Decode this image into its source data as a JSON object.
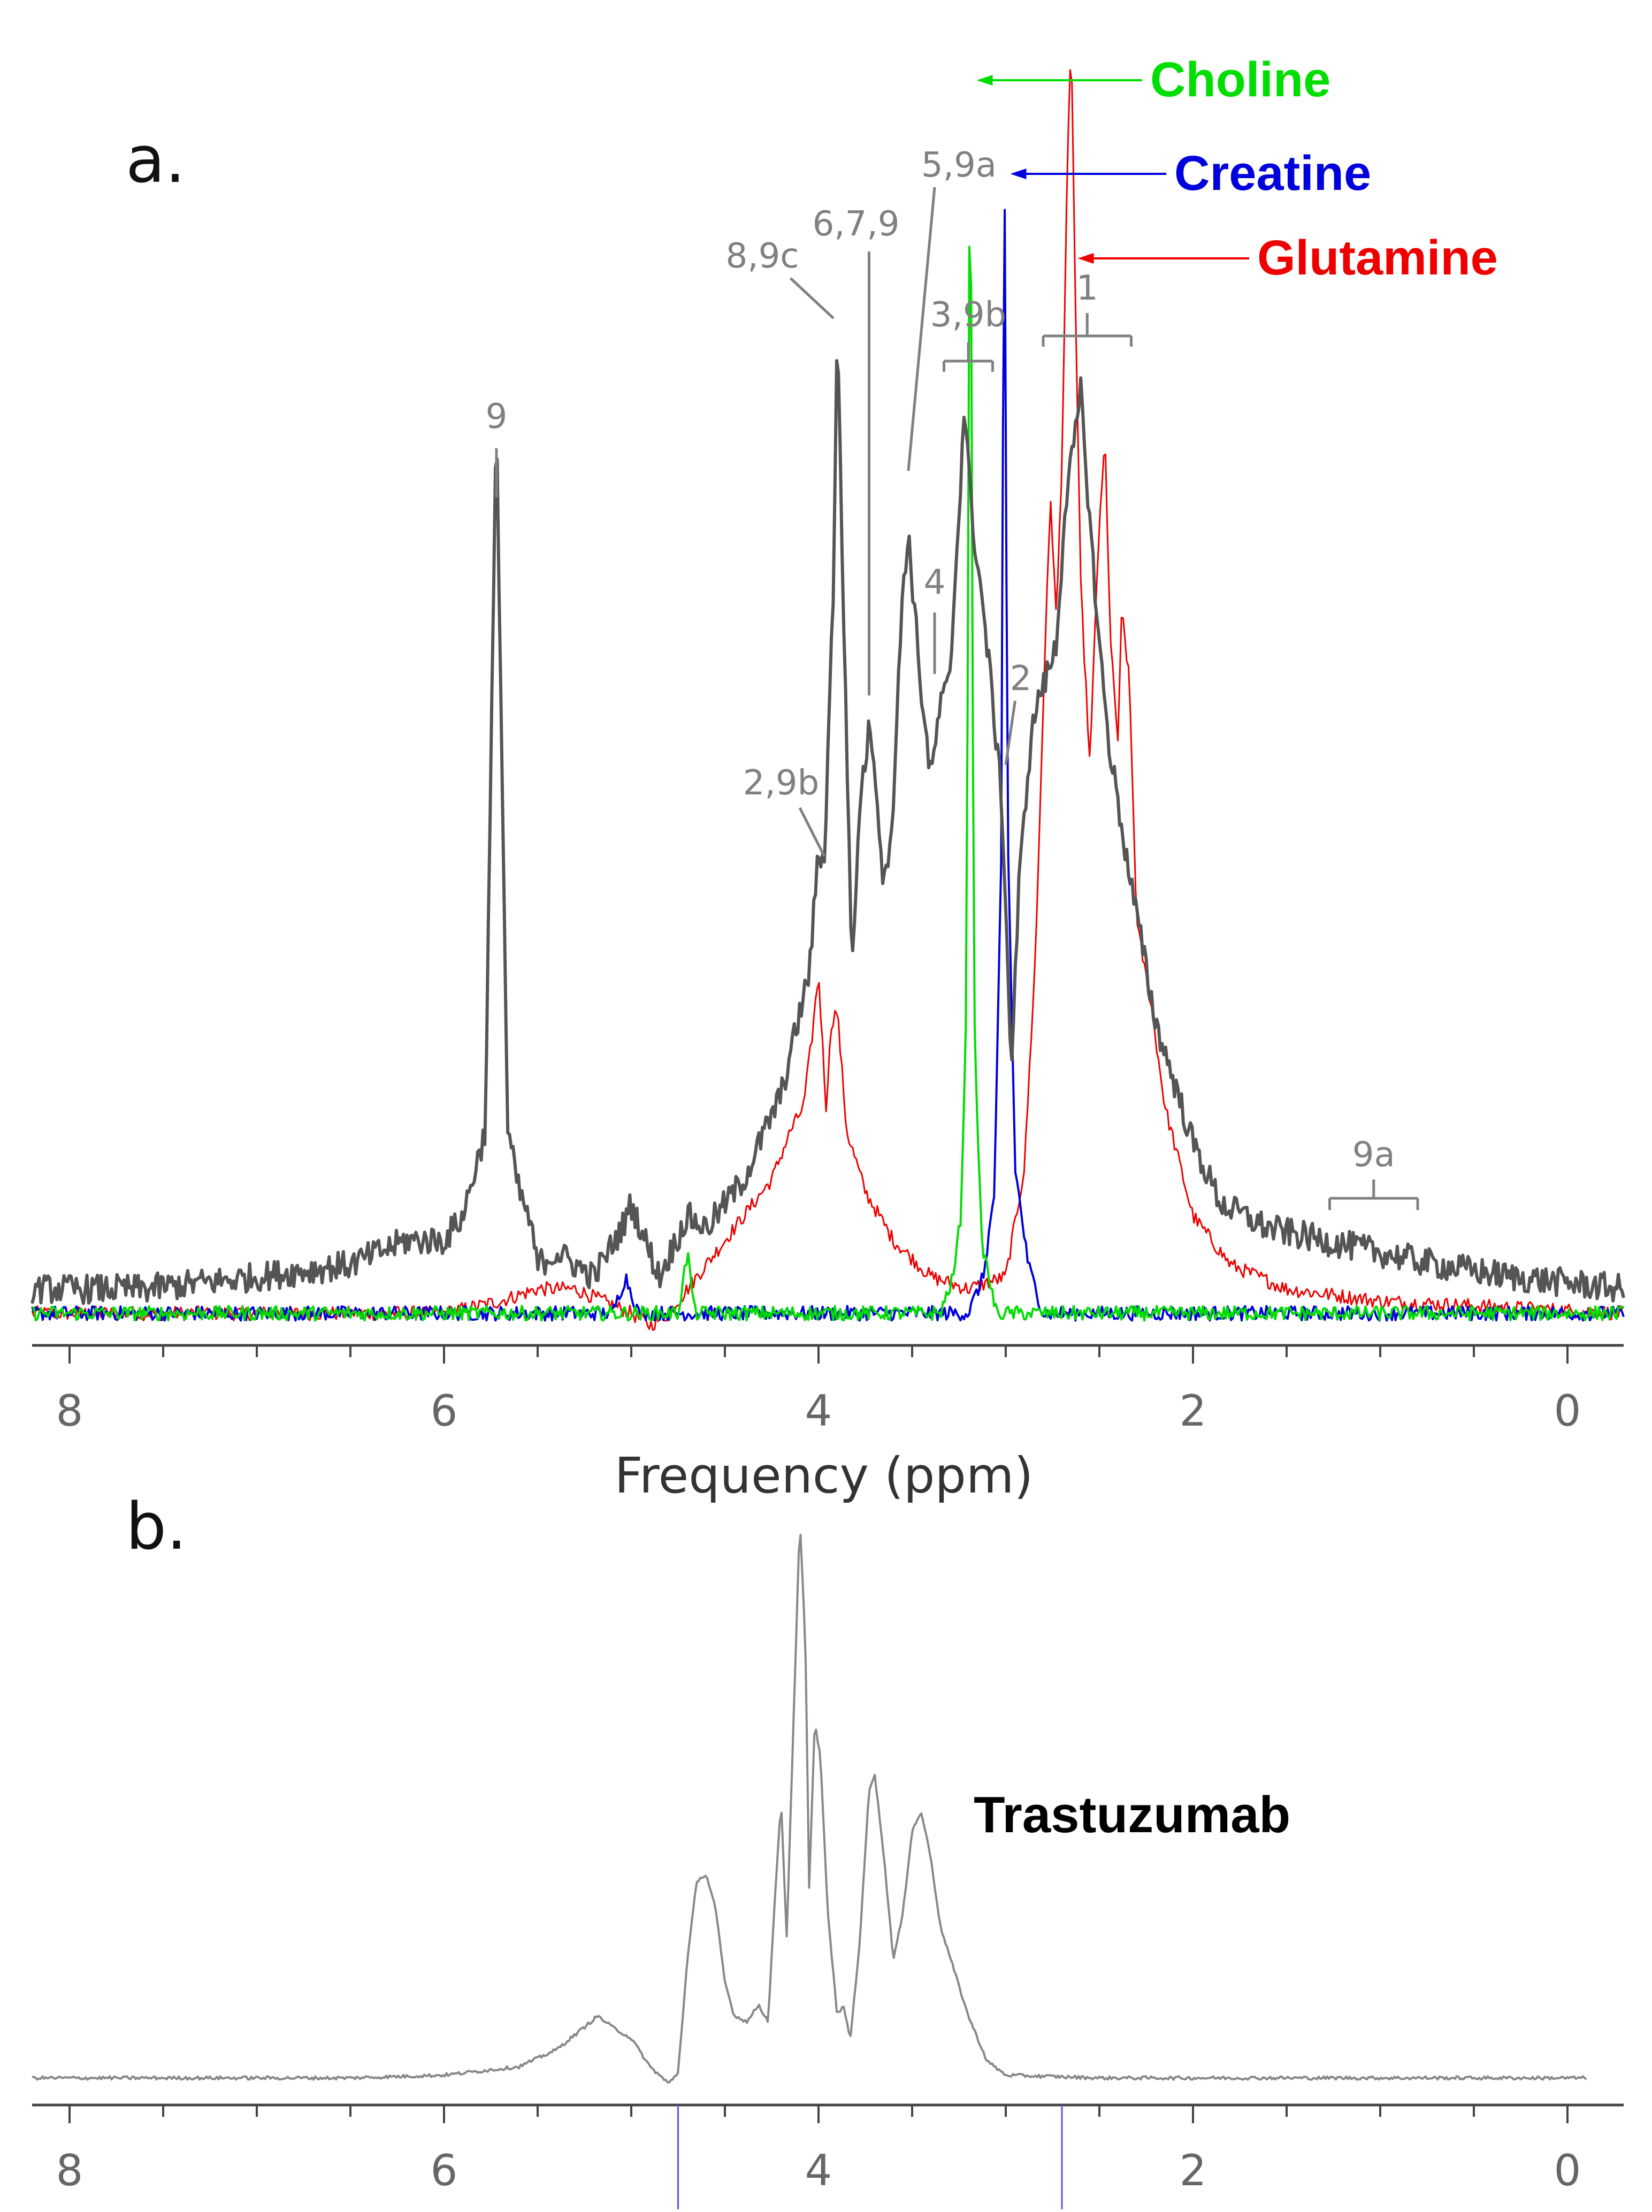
{
  "chart_data": [
    {
      "panel_label": "a.",
      "type": "line",
      "xlabel": "Frequency (ppm)",
      "xlim": [
        8.2,
        -0.3
      ],
      "x_reversed": true,
      "xticks": [
        "8",
        "6",
        "4",
        "2",
        "0"
      ],
      "xtick_values": [
        8,
        6,
        4,
        2,
        0
      ],
      "ylabel": "",
      "yticks_shown": false,
      "grid": false,
      "legend": "annotations-top-right",
      "colors": {
        "sample": "#555555",
        "choline": "#00dd00",
        "creatine": "#0000dd",
        "glutamine": "#ee0000",
        "annotation": "#808080"
      },
      "series": [
        {
          "name": "",
          "color": "#555555",
          "points": [
            [
              8.2,
              0.02
            ],
            [
              7.6,
              0.02
            ],
            [
              7.0,
              0.03
            ],
            [
              6.5,
              0.04
            ],
            [
              6.2,
              0.06
            ],
            [
              6.0,
              0.06
            ],
            [
              5.9,
              0.08
            ],
            [
              5.78,
              0.15
            ],
            [
              5.72,
              0.74
            ],
            [
              5.66,
              0.15
            ],
            [
              5.6,
              0.1
            ],
            [
              5.55,
              0.08
            ],
            [
              5.5,
              0.04
            ],
            [
              5.4,
              0.05
            ],
            [
              5.2,
              0.03
            ],
            [
              5.05,
              0.07
            ],
            [
              5.0,
              0.09
            ],
            [
              4.95,
              0.07
            ],
            [
              4.85,
              0.03
            ],
            [
              4.7,
              0.08
            ],
            [
              4.6,
              0.07
            ],
            [
              4.4,
              0.11
            ],
            [
              4.2,
              0.18
            ],
            [
              4.05,
              0.28
            ],
            [
              4.0,
              0.38
            ],
            [
              3.97,
              0.37
            ],
            [
              3.92,
              0.6
            ],
            [
              3.9,
              0.82
            ],
            [
              3.87,
              0.6
            ],
            [
              3.82,
              0.28
            ],
            [
              3.78,
              0.42
            ],
            [
              3.73,
              0.48
            ],
            [
              3.71,
              0.47
            ],
            [
              3.65,
              0.35
            ],
            [
              3.6,
              0.42
            ],
            [
              3.55,
              0.6
            ],
            [
              3.52,
              0.64
            ],
            [
              3.45,
              0.51
            ],
            [
              3.4,
              0.44
            ],
            [
              3.35,
              0.5
            ],
            [
              3.3,
              0.52
            ],
            [
              3.25,
              0.66
            ],
            [
              3.22,
              0.75
            ],
            [
              3.18,
              0.65
            ],
            [
              3.15,
              0.62
            ],
            [
              3.08,
              0.52
            ],
            [
              3.02,
              0.42
            ],
            [
              2.97,
              0.2
            ],
            [
              2.93,
              0.35
            ],
            [
              2.88,
              0.45
            ],
            [
              2.84,
              0.5
            ],
            [
              2.79,
              0.52
            ],
            [
              2.73,
              0.55
            ],
            [
              2.68,
              0.67
            ],
            [
              2.62,
              0.73
            ],
            [
              2.6,
              0.76
            ],
            [
              2.55,
              0.65
            ],
            [
              2.5,
              0.55
            ],
            [
              2.45,
              0.47
            ],
            [
              2.35,
              0.37
            ],
            [
              2.2,
              0.24
            ],
            [
              2.0,
              0.14
            ],
            [
              1.85,
              0.09
            ],
            [
              1.6,
              0.07
            ],
            [
              1.3,
              0.06
            ],
            [
              1.0,
              0.05
            ],
            [
              0.7,
              0.04
            ],
            [
              0.3,
              0.03
            ],
            [
              -0.3,
              0.02
            ]
          ]
        },
        {
          "name": "Choline",
          "color": "#00dd00",
          "points": [
            [
              8.2,
              0.0
            ],
            [
              5.0,
              0.0
            ],
            [
              4.75,
              0.0
            ],
            [
              4.7,
              0.05
            ],
            [
              4.66,
              0.0
            ],
            [
              3.6,
              0.0
            ],
            [
              3.35,
              0.0
            ],
            [
              3.28,
              0.03
            ],
            [
              3.24,
              0.08
            ],
            [
              3.21,
              0.25
            ],
            [
              3.19,
              1.05
            ],
            [
              3.17,
              0.25
            ],
            [
              3.13,
              0.06
            ],
            [
              3.05,
              0.0
            ],
            [
              2.9,
              0.0
            ],
            [
              -0.3,
              0.0
            ]
          ]
        },
        {
          "name": "Creatine",
          "color": "#0000dd",
          "points": [
            [
              8.2,
              0.0
            ],
            [
              5.1,
              0.0
            ],
            [
              5.03,
              0.03
            ],
            [
              4.96,
              0.0
            ],
            [
              3.5,
              0.0
            ],
            [
              3.2,
              0.0
            ],
            [
              3.12,
              0.03
            ],
            [
              3.06,
              0.1
            ],
            [
              3.02,
              0.4
            ],
            [
              3.01,
              1.05
            ],
            [
              2.99,
              0.4
            ],
            [
              2.95,
              0.12
            ],
            [
              2.88,
              0.04
            ],
            [
              2.8,
              0.0
            ],
            [
              -0.3,
              0.0
            ]
          ]
        },
        {
          "name": "Glutamine",
          "color": "#ee0000",
          "points": [
            [
              8.2,
              0.0
            ],
            [
              6.0,
              0.0
            ],
            [
              5.7,
              0.01
            ],
            [
              5.5,
              0.02
            ],
            [
              5.3,
              0.02
            ],
            [
              5.0,
              0.0
            ],
            [
              4.9,
              -0.01
            ],
            [
              4.8,
              0.0
            ],
            [
              4.6,
              0.04
            ],
            [
              4.4,
              0.08
            ],
            [
              4.25,
              0.11
            ],
            [
              4.15,
              0.15
            ],
            [
              4.08,
              0.17
            ],
            [
              4.04,
              0.22
            ],
            [
              4.0,
              0.28
            ],
            [
              3.96,
              0.17
            ],
            [
              3.93,
              0.24
            ],
            [
              3.9,
              0.25
            ],
            [
              3.85,
              0.15
            ],
            [
              3.75,
              0.1
            ],
            [
              3.6,
              0.06
            ],
            [
              3.4,
              0.03
            ],
            [
              3.2,
              0.02
            ],
            [
              3.0,
              0.03
            ],
            [
              2.9,
              0.12
            ],
            [
              2.84,
              0.3
            ],
            [
              2.79,
              0.55
            ],
            [
              2.76,
              0.67
            ],
            [
              2.73,
              0.57
            ],
            [
              2.7,
              0.7
            ],
            [
              2.67,
              0.95
            ],
            [
              2.65,
              1.05
            ],
            [
              2.63,
              0.85
            ],
            [
              2.6,
              0.6
            ],
            [
              2.55,
              0.45
            ],
            [
              2.51,
              0.62
            ],
            [
              2.47,
              0.72
            ],
            [
              2.44,
              0.55
            ],
            [
              2.4,
              0.47
            ],
            [
              2.38,
              0.58
            ],
            [
              2.34,
              0.52
            ],
            [
              2.3,
              0.32
            ],
            [
              2.22,
              0.25
            ],
            [
              2.15,
              0.17
            ],
            [
              2.0,
              0.08
            ],
            [
              1.8,
              0.04
            ],
            [
              1.5,
              0.02
            ],
            [
              1.0,
              0.01
            ],
            [
              -0.3,
              0.0
            ]
          ]
        }
      ],
      "annotations": [
        {
          "label": "9",
          "x": 5.72,
          "kind": "tick"
        },
        {
          "label": "8,9c",
          "x": 3.9,
          "kind": "diagonal"
        },
        {
          "label": "6,7,9",
          "x": 3.73,
          "kind": "vertical"
        },
        {
          "label": "5,9a",
          "x": 3.52,
          "kind": "diagonal"
        },
        {
          "label": "3,9b",
          "x_range": [
            3.33,
            3.07
          ],
          "kind": "bracket"
        },
        {
          "label": "1",
          "x_range": [
            2.8,
            2.33
          ],
          "kind": "bracket"
        },
        {
          "label": "4",
          "x": 3.38,
          "kind": "vertical"
        },
        {
          "label": "2",
          "x": 3.0,
          "kind": "diagonal"
        },
        {
          "label": "2,9b",
          "x": 3.97,
          "kind": "diagonal"
        },
        {
          "label": "9a",
          "x_range": [
            1.27,
            0.8
          ],
          "kind": "bracket"
        }
      ],
      "metabolite_labels": [
        {
          "label": "Choline",
          "color": "#00dd00",
          "x": 3.19
        },
        {
          "label": "Creatine",
          "color": "#0000dd",
          "x": 3.01
        },
        {
          "label": "Glutamine",
          "color": "#ee0000",
          "x": 2.65
        }
      ]
    },
    {
      "panel_label": "b.",
      "type": "line",
      "xlabel": "",
      "xlim": [
        8.2,
        -0.1
      ],
      "x_reversed": true,
      "xticks": [
        "8",
        "6",
        "4",
        "2",
        "0"
      ],
      "xtick_values": [
        8,
        6,
        4,
        2,
        0
      ],
      "yticks_shown": false,
      "grid": false,
      "title_label": "Trastuzumab",
      "colors": {
        "trace": "#888888",
        "markers": "#5555ee"
      },
      "vertical_markers": [
        4.75,
        2.7
      ],
      "series": [
        {
          "name": "Trastuzumab",
          "color": "#888888",
          "points": [
            [
              8.2,
              0.01
            ],
            [
              6.5,
              0.01
            ],
            [
              6.0,
              0.015
            ],
            [
              5.6,
              0.03
            ],
            [
              5.4,
              0.06
            ],
            [
              5.25,
              0.1
            ],
            [
              5.18,
              0.12
            ],
            [
              5.1,
              0.1
            ],
            [
              5.0,
              0.08
            ],
            [
              4.9,
              0.03
            ],
            [
              4.8,
              0.0
            ],
            [
              4.75,
              0.02
            ],
            [
              4.7,
              0.22
            ],
            [
              4.65,
              0.36
            ],
            [
              4.6,
              0.37
            ],
            [
              4.55,
              0.31
            ],
            [
              4.5,
              0.18
            ],
            [
              4.45,
              0.12
            ],
            [
              4.38,
              0.11
            ],
            [
              4.32,
              0.14
            ],
            [
              4.27,
              0.11
            ],
            [
              4.22,
              0.4
            ],
            [
              4.2,
              0.5
            ],
            [
              4.17,
              0.26
            ],
            [
              4.12,
              0.78
            ],
            [
              4.1,
              1.0
            ],
            [
              4.07,
              0.78
            ],
            [
              4.05,
              0.35
            ],
            [
              4.02,
              0.64
            ],
            [
              3.99,
              0.58
            ],
            [
              3.95,
              0.3
            ],
            [
              3.9,
              0.12
            ],
            [
              3.87,
              0.14
            ],
            [
              3.83,
              0.08
            ],
            [
              3.78,
              0.25
            ],
            [
              3.73,
              0.52
            ],
            [
              3.7,
              0.55
            ],
            [
              3.65,
              0.4
            ],
            [
              3.6,
              0.22
            ],
            [
              3.55,
              0.3
            ],
            [
              3.5,
              0.45
            ],
            [
              3.45,
              0.48
            ],
            [
              3.4,
              0.4
            ],
            [
              3.35,
              0.28
            ],
            [
              3.2,
              0.12
            ],
            [
              3.1,
              0.04
            ],
            [
              3.0,
              0.015
            ],
            [
              2.5,
              0.01
            ],
            [
              0.0,
              0.01
            ]
          ]
        }
      ]
    }
  ]
}
